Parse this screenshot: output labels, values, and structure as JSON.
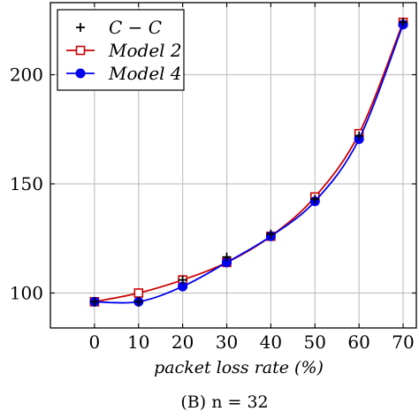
{
  "chart_data": {
    "type": "line",
    "x": [
      0,
      10,
      20,
      30,
      40,
      50,
      60,
      70
    ],
    "xlabel": "packet loss rate (%)",
    "ylabel": "",
    "xlim": [
      -10,
      73
    ],
    "ylim": [
      84,
      233
    ],
    "xticks": [
      0,
      10,
      20,
      30,
      40,
      50,
      60,
      70
    ],
    "yticks": [
      100,
      150,
      200
    ],
    "grid": true,
    "legend_position": "top-left",
    "caption": "(B) n = 32",
    "series": [
      {
        "name": "C − C",
        "color": "#000000",
        "marker": "plus",
        "values": [
          96,
          96,
          106,
          116.5,
          127,
          143,
          172,
          224
        ]
      },
      {
        "name": "Model 2",
        "color": "#cc0000",
        "marker": "open-square",
        "values": [
          96,
          100,
          106,
          114,
          126,
          144,
          173,
          224
        ]
      },
      {
        "name": "Model 4",
        "color": "#0000ee",
        "marker": "filled-circle",
        "values": [
          96,
          96,
          103,
          114,
          126,
          142,
          170.5,
          223
        ]
      }
    ]
  }
}
